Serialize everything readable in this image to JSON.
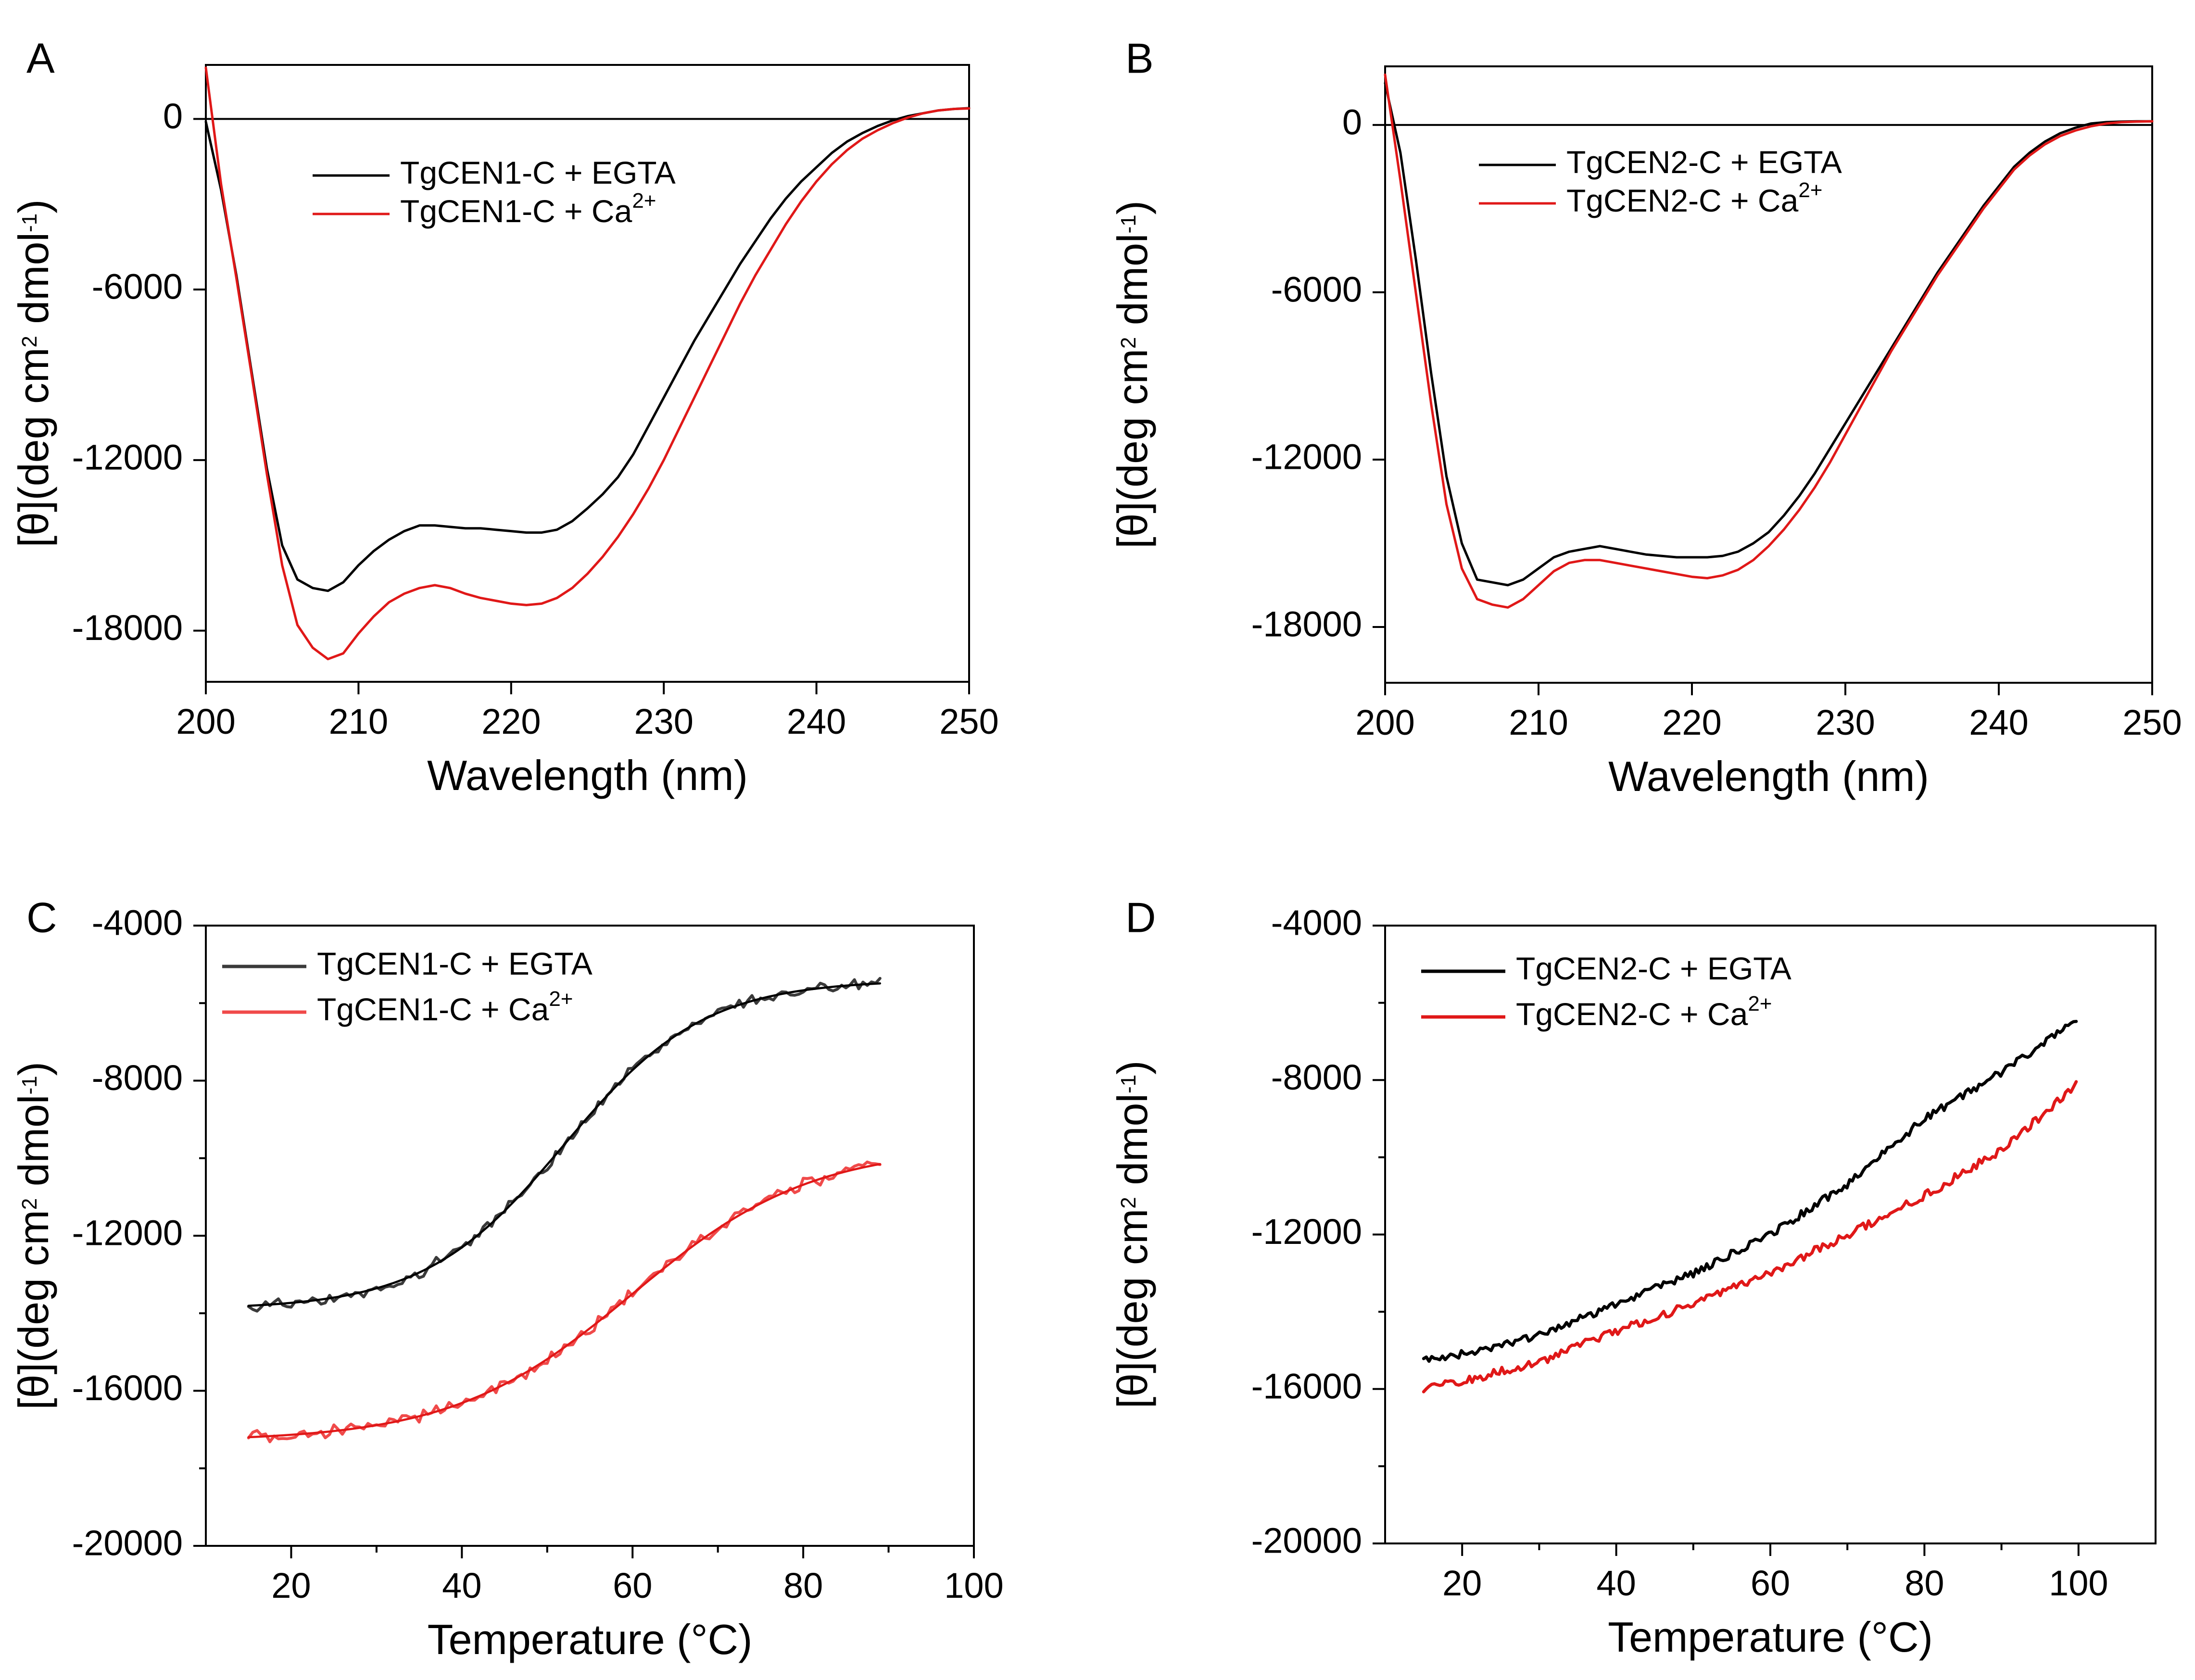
{
  "colors": {
    "black": "#000000",
    "gray": "#3a3a3a",
    "red": "#e01818",
    "red_light": "#f04a4a"
  },
  "chart_data": [
    {
      "id": "A",
      "type": "line",
      "panel_label": "A",
      "xlabel": "Wavelength (nm)",
      "ylabel": "[θ](deg cm2 dmol-1)",
      "ylabel_parts": {
        "pre": "[θ](deg cm",
        "sup1": "2",
        "mid": " dmol",
        "sup2": "-1",
        "post": ")"
      },
      "xlim": [
        200,
        250
      ],
      "ylim": [
        -19800,
        1900
      ],
      "xticks": [
        200,
        210,
        220,
        230,
        240,
        250
      ],
      "xtick_labels": [
        "200",
        "210",
        "220",
        "230",
        "240",
        "250"
      ],
      "yticks": [
        0,
        -6000,
        -12000,
        -18000
      ],
      "ytick_labels": [
        "0",
        "-6000",
        "-12000",
        "-18000"
      ],
      "zero_line": true,
      "legend": "top-center",
      "series": [
        {
          "name": "TgCEN1-C + EGTA",
          "legend_main": "TgCEN1-C + EGTA",
          "legend_sup": "",
          "color": "black",
          "x": [
            200,
            201,
            202,
            203,
            204,
            205,
            206,
            207,
            208,
            209,
            210,
            211,
            212,
            213,
            214,
            215,
            216,
            217,
            218,
            219,
            220,
            221,
            222,
            223,
            224,
            225,
            226,
            227,
            228,
            229,
            230,
            231,
            232,
            233,
            234,
            235,
            236,
            237,
            238,
            239,
            240,
            241,
            242,
            243,
            244,
            245,
            246,
            247,
            248,
            249,
            250
          ],
          "y": [
            -100,
            -2500,
            -5500,
            -8900,
            -12300,
            -15000,
            -16200,
            -16500,
            -16600,
            -16300,
            -15700,
            -15200,
            -14800,
            -14500,
            -14300,
            -14300,
            -14350,
            -14400,
            -14400,
            -14450,
            -14500,
            -14550,
            -14550,
            -14450,
            -14150,
            -13700,
            -13200,
            -12600,
            -11800,
            -10800,
            -9800,
            -8800,
            -7800,
            -6900,
            -6000,
            -5100,
            -4300,
            -3500,
            -2800,
            -2200,
            -1700,
            -1200,
            -800,
            -500,
            -250,
            -50,
            100,
            200,
            300,
            350,
            380
          ]
        },
        {
          "name": "TgCEN1-C + Ca2+",
          "legend_main": "TgCEN1-C + Ca",
          "legend_sup": "2+",
          "color": "red",
          "x": [
            200,
            201,
            202,
            203,
            204,
            205,
            206,
            207,
            208,
            209,
            210,
            211,
            212,
            213,
            214,
            215,
            216,
            217,
            218,
            219,
            220,
            221,
            222,
            223,
            224,
            225,
            226,
            227,
            228,
            229,
            230,
            231,
            232,
            233,
            234,
            235,
            236,
            237,
            238,
            239,
            240,
            241,
            242,
            243,
            244,
            245,
            246,
            247,
            248,
            249,
            250
          ],
          "y": [
            1800,
            -2300,
            -5600,
            -9000,
            -12500,
            -15700,
            -17800,
            -18600,
            -19000,
            -18800,
            -18100,
            -17500,
            -17000,
            -16700,
            -16500,
            -16400,
            -16500,
            -16700,
            -16850,
            -16950,
            -17050,
            -17100,
            -17050,
            -16850,
            -16500,
            -16000,
            -15400,
            -14700,
            -13900,
            -13000,
            -12000,
            -10900,
            -9800,
            -8700,
            -7600,
            -6500,
            -5500,
            -4600,
            -3700,
            -2900,
            -2200,
            -1600,
            -1100,
            -700,
            -400,
            -150,
            50,
            200,
            300,
            350,
            370
          ]
        }
      ]
    },
    {
      "id": "B",
      "type": "line",
      "panel_label": "B",
      "xlabel": "Wavelength (nm)",
      "ylabel": "[θ](deg cm2 dmol-1)",
      "ylabel_parts": {
        "pre": "[θ](deg cm",
        "sup1": "2",
        "mid": " dmol",
        "sup2": "-1",
        "post": ")"
      },
      "xlim": [
        200,
        250
      ],
      "ylim": [
        -20000,
        2100
      ],
      "xticks": [
        200,
        210,
        220,
        230,
        240,
        250
      ],
      "xtick_labels": [
        "200",
        "210",
        "220",
        "230",
        "240",
        "250"
      ],
      "yticks": [
        0,
        -6000,
        -12000,
        -18000
      ],
      "ytick_labels": [
        "0",
        "-6000",
        "-12000",
        "-18000"
      ],
      "zero_line": true,
      "legend": "top-center",
      "series": [
        {
          "name": "TgCEN2-C + EGTA",
          "legend_main": "TgCEN2-C + EGTA",
          "legend_sup": "",
          "color": "black",
          "x": [
            200,
            201,
            202,
            203,
            204,
            205,
            206,
            207,
            208,
            209,
            210,
            211,
            212,
            213,
            214,
            215,
            216,
            217,
            218,
            219,
            220,
            221,
            222,
            223,
            224,
            225,
            226,
            227,
            228,
            229,
            230,
            231,
            232,
            233,
            234,
            235,
            236,
            237,
            238,
            239,
            240,
            241,
            242,
            243,
            244,
            245,
            246,
            247,
            248,
            249,
            250
          ],
          "y": [
            1500,
            -1000,
            -4800,
            -8900,
            -12600,
            -15000,
            -16300,
            -16400,
            -16500,
            -16300,
            -15900,
            -15500,
            -15300,
            -15200,
            -15100,
            -15200,
            -15300,
            -15400,
            -15450,
            -15500,
            -15500,
            -15500,
            -15450,
            -15300,
            -15000,
            -14600,
            -14000,
            -13300,
            -12500,
            -11600,
            -10700,
            -9800,
            -8900,
            -8000,
            -7100,
            -6200,
            -5300,
            -4500,
            -3700,
            -2900,
            -2200,
            -1500,
            -1000,
            -600,
            -300,
            -100,
            50,
            100,
            120,
            130,
            130
          ]
        },
        {
          "name": "TgCEN2-C + Ca2+",
          "legend_main": "TgCEN2-C + Ca",
          "legend_sup": "2+",
          "color": "red",
          "x": [
            200,
            201,
            202,
            203,
            204,
            205,
            206,
            207,
            208,
            209,
            210,
            211,
            212,
            213,
            214,
            215,
            216,
            217,
            218,
            219,
            220,
            221,
            222,
            223,
            224,
            225,
            226,
            227,
            228,
            229,
            230,
            231,
            232,
            233,
            234,
            235,
            236,
            237,
            238,
            239,
            240,
            241,
            242,
            243,
            244,
            245,
            246,
            247,
            248,
            249,
            250
          ],
          "y": [
            1800,
            -2000,
            -6000,
            -10000,
            -13600,
            -15900,
            -17000,
            -17200,
            -17300,
            -17000,
            -16500,
            -16000,
            -15700,
            -15600,
            -15600,
            -15700,
            -15800,
            -15900,
            -16000,
            -16100,
            -16200,
            -16250,
            -16150,
            -15950,
            -15600,
            -15100,
            -14500,
            -13800,
            -13000,
            -12100,
            -11100,
            -10100,
            -9100,
            -8100,
            -7200,
            -6300,
            -5400,
            -4600,
            -3800,
            -3000,
            -2300,
            -1600,
            -1100,
            -700,
            -400,
            -200,
            -50,
            50,
            100,
            120,
            130
          ]
        }
      ]
    },
    {
      "id": "C",
      "type": "line",
      "panel_label": "C",
      "xlabel": "Temperature (°C)",
      "ylabel": "[θ](deg cm2 dmol-1)",
      "ylabel_parts": {
        "pre": "[θ](deg cm",
        "sup1": "2",
        "mid": " dmol",
        "sup2": "-1",
        "post": ")"
      },
      "xlim": [
        10,
        100
      ],
      "ylim": [
        -20000,
        -4000
      ],
      "xticks": [
        20,
        40,
        60,
        80,
        100
      ],
      "xtick_labels": [
        "20",
        "40",
        "60",
        "80",
        "100"
      ],
      "yticks": [
        -4000,
        -8000,
        -12000,
        -16000,
        -20000
      ],
      "ytick_labels": [
        "-4000",
        "-8000",
        "-12000",
        "-16000",
        "-20000"
      ],
      "minor_y": [
        -6000,
        -10000,
        -14000,
        -18000
      ],
      "legend": "top-left",
      "series": [
        {
          "name": "TgCEN1-C + EGTA",
          "legend_main": "TgCEN1-C + EGTA",
          "legend_sup": "",
          "color": "gray",
          "fit": {
            "model": "sigmoid",
            "x_start": 15,
            "x_end": 89,
            "bottom": -13900,
            "top": -5400,
            "tm": 52,
            "slope": 8.2,
            "fit_color": "black"
          },
          "noise": 120
        },
        {
          "name": "TgCEN1-C + Ca2+",
          "legend_main": "TgCEN1-C + Ca",
          "legend_sup": "2+",
          "color": "red_light",
          "fit": {
            "model": "sigmoid",
            "x_start": 15,
            "x_end": 89,
            "bottom": -17300,
            "top": -9700,
            "tm": 60,
            "slope": 10.5,
            "fit_color": "red"
          },
          "noise": 120
        }
      ]
    },
    {
      "id": "D",
      "type": "line",
      "panel_label": "D",
      "xlabel": "Temperature (°C)",
      "ylabel": "[θ](deg cm2 dmol-1)",
      "ylabel_parts": {
        "pre": "[θ](deg cm",
        "sup1": "2",
        "mid": " dmol",
        "sup2": "-1",
        "post": ")"
      },
      "xlim": [
        10,
        110
      ],
      "ylim": [
        -20000,
        -4000
      ],
      "xticks": [
        20,
        40,
        60,
        80,
        100
      ],
      "xtick_labels": [
        "20",
        "40",
        "60",
        "80",
        "100"
      ],
      "yticks": [
        -4000,
        -8000,
        -12000,
        -16000,
        -20000
      ],
      "ytick_labels": [
        "-4000",
        "-8000",
        "-12000",
        "-16000",
        "-20000"
      ],
      "minor_y": [
        -6000,
        -10000,
        -14000,
        -18000
      ],
      "legend": "top-left",
      "series": [
        {
          "name": "TgCEN2-C + EGTA",
          "legend_main": "TgCEN2-C + EGTA",
          "legend_sup": "",
          "color": "black",
          "x": [
            15,
            20,
            30,
            40,
            50,
            60,
            70,
            80,
            90,
            100
          ],
          "y": [
            -15200,
            -15100,
            -14600,
            -13800,
            -13000,
            -12000,
            -10700,
            -9000,
            -7800,
            -6400
          ],
          "noise": 100
        },
        {
          "name": "TgCEN2-C + Ca2+",
          "legend_main": "TgCEN2-C + Ca",
          "legend_sup": "2+",
          "color": "red",
          "x": [
            15,
            20,
            30,
            40,
            50,
            60,
            70,
            80,
            90,
            100
          ],
          "y": [
            -16000,
            -15800,
            -15300,
            -14500,
            -13800,
            -13000,
            -12000,
            -11000,
            -9800,
            -8100
          ],
          "noise": 110
        }
      ]
    }
  ]
}
